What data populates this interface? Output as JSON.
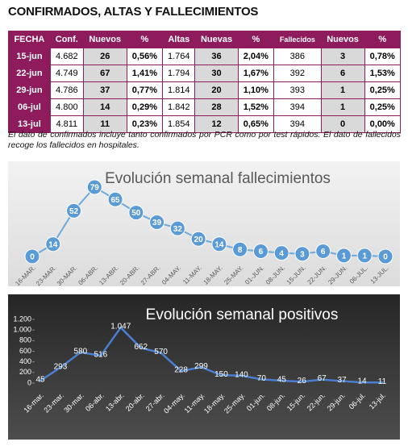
{
  "title": "CONFIRMADOS, ALTAS Y FALLECIMIENTOS",
  "table": {
    "header": [
      "FECHA",
      "Conf.",
      "Nuevos",
      "%",
      "Altas",
      "Nuevas",
      "%",
      "Fallecidos",
      "Nuevos",
      "%"
    ],
    "rows": [
      [
        "15-jun",
        "4.682",
        "26",
        "0,56%",
        "1.764",
        "36",
        "2,04%",
        "386",
        "3",
        "0,78%"
      ],
      [
        "22-jun",
        "4.749",
        "67",
        "1,41%",
        "1.794",
        "30",
        "1,67%",
        "392",
        "6",
        "1,53%"
      ],
      [
        "29-jun",
        "4.786",
        "37",
        "0,77%",
        "1.814",
        "20",
        "1,10%",
        "393",
        "1",
        "0,25%"
      ],
      [
        "06-jul",
        "4.800",
        "14",
        "0,29%",
        "1.842",
        "28",
        "1,52%",
        "394",
        "1",
        "0,25%"
      ],
      [
        "13-jul",
        "4.811",
        "11",
        "0,23%",
        "1.854",
        "12",
        "0,65%",
        "394",
        "0",
        "0,00%"
      ]
    ]
  },
  "note": "El dato de confirmados incluye tanto confirmados por PCR como por test rápidos. El dato de fallecidos recoge los fallecidos en hospitales.",
  "chart_data": [
    {
      "type": "line",
      "title": "Evolución semanal fallecimientos",
      "color": "#6fa8dc",
      "categories": [
        "16-MAR.",
        "23-MAR.",
        "30-MAR.",
        "06-ABR.",
        "13-ABR.",
        "20-ABR.",
        "27-ABR.",
        "04-MAY.",
        "11-MAY.",
        "18-MAY.",
        "25-MAY.",
        "01-JUN.",
        "08-JUN.",
        "15-JUN.",
        "22-JUN.",
        "29-JUN.",
        "06-JUL.",
        "13-JUL."
      ],
      "values": [
        0,
        14,
        52,
        79,
        65,
        50,
        39,
        32,
        20,
        14,
        8,
        6,
        4,
        3,
        6,
        1,
        1,
        0
      ]
    },
    {
      "type": "line",
      "title": "Evolución semanal positivos",
      "color": "#4a7ed0",
      "categories": [
        "16-mar.",
        "23-mar.",
        "30-mar.",
        "06-abr.",
        "13-abr.",
        "20-abr.",
        "27-abr.",
        "04-may.",
        "11-may.",
        "18-may.",
        "25-may.",
        "01-jun.",
        "08-jun.",
        "15-jun.",
        "22-jun.",
        "29-jun.",
        "06-jul.",
        "13-jul."
      ],
      "values": [
        45,
        293,
        580,
        516,
        1047,
        662,
        570,
        228,
        299,
        150,
        140,
        70,
        45,
        26,
        67,
        37,
        14,
        11
      ],
      "value_labels": [
        "45",
        "293",
        "580",
        "516",
        "1.047",
        "662",
        "570",
        "228",
        "299",
        "150",
        "140",
        "70",
        "45",
        "26",
        "67",
        "37",
        "14",
        "11"
      ],
      "ylim": [
        0,
        1200
      ],
      "yticks": [
        0,
        200,
        400,
        600,
        800,
        {
          "value": 1000,
          "label": "1.000"
        },
        {
          "value": 1200,
          "label": "1.200"
        }
      ]
    }
  ]
}
